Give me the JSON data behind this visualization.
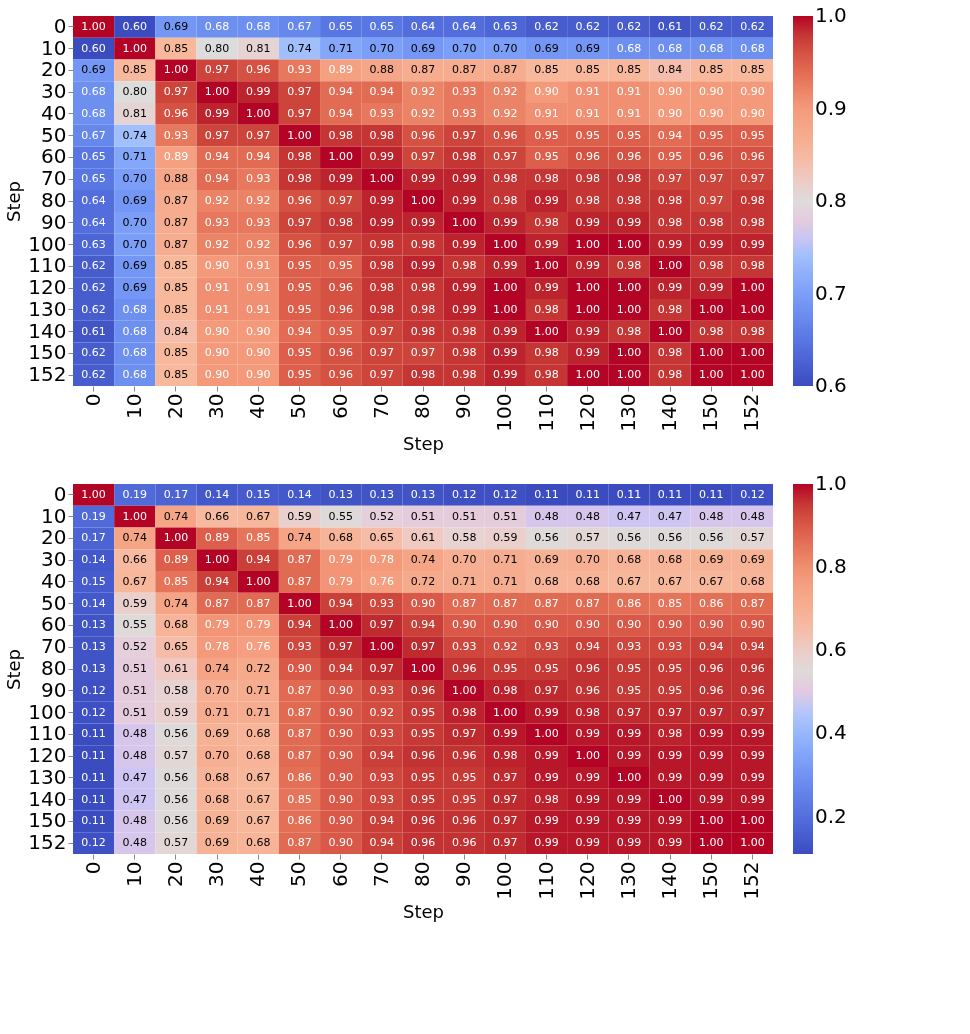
{
  "chart_data": [
    {
      "type": "heatmap",
      "xlabel": "Step",
      "ylabel": "Step",
      "categories": [
        "0",
        "10",
        "20",
        "30",
        "40",
        "50",
        "60",
        "70",
        "80",
        "90",
        "100",
        "110",
        "120",
        "130",
        "140",
        "150",
        "152"
      ],
      "y_categories": [
        "0",
        "10",
        "20",
        "30",
        "40",
        "50",
        "60",
        "70",
        "80",
        "90",
        "100",
        "110",
        "120",
        "130",
        "140",
        "150",
        "152"
      ],
      "data_labels": true,
      "clim": [
        0.6,
        1.0
      ],
      "cticks": [
        0.6,
        0.7,
        0.8,
        0.9,
        {
          "value": 1.0,
          "label": "1.0"
        }
      ],
      "cells": [
        [
          1.0,
          0.6,
          0.69,
          0.68,
          0.68,
          0.67,
          0.65,
          0.65,
          0.64,
          0.64,
          0.63,
          0.62,
          0.62,
          0.62,
          0.61,
          0.62,
          0.62
        ],
        [
          0.6,
          1.0,
          0.85,
          0.8,
          0.81,
          0.74,
          0.71,
          0.7,
          0.69,
          0.7,
          0.7,
          0.69,
          0.69,
          0.68,
          0.68,
          0.68,
          0.68
        ],
        [
          0.69,
          0.85,
          1.0,
          0.97,
          0.96,
          0.93,
          0.89,
          0.88,
          0.87,
          0.87,
          0.87,
          0.85,
          0.85,
          0.85,
          0.84,
          0.85,
          0.85
        ],
        [
          0.68,
          0.8,
          0.97,
          1.0,
          0.99,
          0.97,
          0.94,
          0.94,
          0.92,
          0.93,
          0.92,
          0.9,
          0.91,
          0.91,
          0.9,
          0.9,
          0.9
        ],
        [
          0.68,
          0.81,
          0.96,
          0.99,
          1.0,
          0.97,
          0.94,
          0.93,
          0.92,
          0.93,
          0.92,
          0.91,
          0.91,
          0.91,
          0.9,
          0.9,
          0.9
        ],
        [
          0.67,
          0.74,
          0.93,
          0.97,
          0.97,
          1.0,
          0.98,
          0.98,
          0.96,
          0.97,
          0.96,
          0.95,
          0.95,
          0.95,
          0.94,
          0.95,
          0.95
        ],
        [
          0.65,
          0.71,
          0.89,
          0.94,
          0.94,
          0.98,
          1.0,
          0.99,
          0.97,
          0.98,
          0.97,
          0.95,
          0.96,
          0.96,
          0.95,
          0.96,
          0.96
        ],
        [
          0.65,
          0.7,
          0.88,
          0.94,
          0.93,
          0.98,
          0.99,
          1.0,
          0.99,
          0.99,
          0.98,
          0.98,
          0.98,
          0.98,
          0.97,
          0.97,
          0.97
        ],
        [
          0.64,
          0.69,
          0.87,
          0.92,
          0.92,
          0.96,
          0.97,
          0.99,
          1.0,
          0.99,
          0.98,
          0.99,
          0.98,
          0.98,
          0.98,
          0.97,
          0.98
        ],
        [
          0.64,
          0.7,
          0.87,
          0.93,
          0.93,
          0.97,
          0.98,
          0.99,
          0.99,
          1.0,
          0.99,
          0.98,
          0.99,
          0.99,
          0.98,
          0.98,
          0.98
        ],
        [
          0.63,
          0.7,
          0.87,
          0.92,
          0.92,
          0.96,
          0.97,
          0.98,
          0.98,
          0.99,
          1.0,
          0.99,
          1.0,
          1.0,
          0.99,
          0.99,
          0.99
        ],
        [
          0.62,
          0.69,
          0.85,
          0.9,
          0.91,
          0.95,
          0.95,
          0.98,
          0.99,
          0.98,
          0.99,
          1.0,
          0.99,
          0.98,
          1.0,
          0.98,
          0.98
        ],
        [
          0.62,
          0.69,
          0.85,
          0.91,
          0.91,
          0.95,
          0.96,
          0.98,
          0.98,
          0.99,
          1.0,
          0.99,
          1.0,
          1.0,
          0.99,
          0.99,
          1.0
        ],
        [
          0.62,
          0.68,
          0.85,
          0.91,
          0.91,
          0.95,
          0.96,
          0.98,
          0.98,
          0.99,
          1.0,
          0.98,
          1.0,
          1.0,
          0.98,
          1.0,
          1.0
        ],
        [
          0.61,
          0.68,
          0.84,
          0.9,
          0.9,
          0.94,
          0.95,
          0.97,
          0.98,
          0.98,
          0.99,
          1.0,
          0.99,
          0.98,
          1.0,
          0.98,
          0.98
        ],
        [
          0.62,
          0.68,
          0.85,
          0.9,
          0.9,
          0.95,
          0.96,
          0.97,
          0.97,
          0.98,
          0.99,
          0.98,
          0.99,
          1.0,
          0.98,
          1.0,
          1.0
        ],
        [
          0.62,
          0.68,
          0.85,
          0.9,
          0.9,
          0.95,
          0.96,
          0.97,
          0.98,
          0.98,
          0.99,
          0.98,
          1.0,
          1.0,
          0.98,
          1.0,
          1.0
        ]
      ],
      "cell_labels": [
        [
          "1.00",
          "0.60",
          "0.69",
          "0.68",
          "0.68",
          "0.67",
          "0.65",
          "0.65",
          "0.64",
          "0.64",
          "0.63",
          "0.62",
          "0.62",
          "0.62",
          "0.61",
          "0.62",
          "0.62"
        ],
        [
          "0.60",
          "1.00",
          "0.85",
          "0.80",
          "0.81",
          "0.74",
          "0.71",
          "0.70",
          "0.69",
          "0.70",
          "0.70",
          "0.69",
          "0.69",
          "0.68",
          "0.68",
          "0.68",
          "0.68"
        ],
        [
          "0.69",
          "0.85",
          "1.00",
          "0.97",
          "0.96",
          "0.93",
          "0.89",
          "0.88",
          "0.87",
          "0.87",
          "0.87",
          "0.85",
          "0.85",
          "0.85",
          "0.84",
          "0.85",
          "0.85"
        ],
        [
          "0.68",
          "0.80",
          "0.97",
          "1.00",
          "0.99",
          "0.97",
          "0.94",
          "0.94",
          "0.92",
          "0.93",
          "0.92",
          "0.90",
          "0.91",
          "0.91",
          "0.90",
          "0.90",
          "0.90"
        ],
        [
          "0.68",
          "0.81",
          "0.96",
          "0.99",
          "1.00",
          "0.97",
          "0.94",
          "0.93",
          "0.92",
          "0.93",
          "0.92",
          "0.91",
          "0.91",
          "0.91",
          "0.90",
          "0.90",
          "0.90"
        ],
        [
          "0.67",
          "0.74",
          "0.93",
          "0.97",
          "0.97",
          "1.00",
          "0.98",
          "0.98",
          "0.96",
          "0.97",
          "0.96",
          "0.95",
          "0.95",
          "0.95",
          "0.94",
          "0.95",
          "0.95"
        ],
        [
          "0.65",
          "0.71",
          "0.89",
          "0.94",
          "0.94",
          "0.98",
          "1.00",
          "0.99",
          "0.97",
          "0.98",
          "0.97",
          "0.95",
          "0.96",
          "0.96",
          "0.95",
          "0.96",
          "0.96"
        ],
        [
          "0.65",
          "0.70",
          "0.88",
          "0.94",
          "0.93",
          "0.98",
          "0.99",
          "1.00",
          "0.99",
          "0.99",
          "0.98",
          "0.98",
          "0.98",
          "0.98",
          "0.97",
          "0.97",
          "0.97"
        ],
        [
          "0.64",
          "0.69",
          "0.87",
          "0.92",
          "0.92",
          "0.96",
          "0.97",
          "0.99",
          "1.00",
          "0.99",
          "0.98",
          "0.99",
          "0.98",
          "0.98",
          "0.98",
          "0.97",
          "0.98"
        ],
        [
          "0.64",
          "0.70",
          "0.87",
          "0.93",
          "0.93",
          "0.97",
          "0.98",
          "0.99",
          "0.99",
          "1.00",
          "0.99",
          "0.98",
          "0.99",
          "0.99",
          "0.98",
          "0.98",
          "0.98"
        ],
        [
          "0.63",
          "0.70",
          "0.87",
          "0.92",
          "0.92",
          "0.96",
          "0.97",
          "0.98",
          "0.98",
          "0.99",
          "1.00",
          "0.99",
          "1.00",
          "1.00",
          "0.99",
          "0.99",
          "0.99"
        ],
        [
          "0.62",
          "0.69",
          "0.85",
          "0.90",
          "0.91",
          "0.95",
          "0.95",
          "0.98",
          "0.99",
          "0.98",
          "0.99",
          "1.00",
          "0.99",
          "0.98",
          "1.00",
          "0.98",
          "0.98"
        ],
        [
          "0.62",
          "0.69",
          "0.85",
          "0.91",
          "0.91",
          "0.95",
          "0.96",
          "0.98",
          "0.98",
          "0.99",
          "1.00",
          "0.99",
          "1.00",
          "1.00",
          "0.99",
          "0.99",
          "1.00"
        ],
        [
          "0.62",
          "0.68",
          "0.85",
          "0.91",
          "0.91",
          "0.95",
          "0.96",
          "0.98",
          "0.98",
          "0.99",
          "1.00",
          "0.98",
          "1.00",
          "1.00",
          "0.98",
          "1.00",
          "1.00"
        ],
        [
          "0.61",
          "0.68",
          "0.84",
          "0.90",
          "0.90",
          "0.94",
          "0.95",
          "0.97",
          "0.98",
          "0.98",
          "0.99",
          "1.00",
          "0.99",
          "0.98",
          "1.00",
          "0.98",
          "0.98"
        ],
        [
          "0.62",
          "0.68",
          "0.85",
          "0.90",
          "0.90",
          "0.95",
          "0.96",
          "0.97",
          "0.97",
          "0.98",
          "0.99",
          "0.98",
          "0.99",
          "1.00",
          "0.98",
          "1.00",
          "1.00"
        ],
        [
          "0.62",
          "0.68",
          "0.85",
          "0.90",
          "0.90",
          "0.95",
          "0.96",
          "0.97",
          "0.98",
          "0.98",
          "0.99",
          "0.98",
          "1.00",
          "1.00",
          "0.98",
          "1.00",
          "1.00"
        ]
      ]
    },
    {
      "type": "heatmap",
      "xlabel": "Step",
      "ylabel": "Step",
      "categories": [
        "0",
        "10",
        "20",
        "30",
        "40",
        "50",
        "60",
        "70",
        "80",
        "90",
        "100",
        "110",
        "120",
        "130",
        "140",
        "150",
        "152"
      ],
      "y_categories": [
        "0",
        "10",
        "20",
        "30",
        "40",
        "50",
        "60",
        "70",
        "80",
        "90",
        "100",
        "110",
        "120",
        "130",
        "140",
        "150",
        "152"
      ],
      "data_labels": true,
      "clim": [
        0.11,
        1.0
      ],
      "cticks": [
        0.2,
        0.4,
        0.6,
        0.8,
        {
          "value": 1.0,
          "label": "1.0"
        }
      ],
      "cells": [
        [
          1.0,
          0.19,
          0.17,
          0.14,
          0.15,
          0.14,
          0.13,
          0.13,
          0.13,
          0.12,
          0.12,
          0.11,
          0.11,
          0.11,
          0.11,
          0.11,
          0.12
        ],
        [
          0.19,
          1.0,
          0.74,
          0.66,
          0.67,
          0.59,
          0.55,
          0.52,
          0.51,
          0.51,
          0.51,
          0.48,
          0.48,
          0.47,
          0.47,
          0.48,
          0.48
        ],
        [
          0.17,
          0.74,
          1.0,
          0.89,
          0.85,
          0.74,
          0.68,
          0.65,
          0.61,
          0.58,
          0.59,
          0.56,
          0.57,
          0.56,
          0.56,
          0.56,
          0.57
        ],
        [
          0.14,
          0.66,
          0.89,
          1.0,
          0.94,
          0.87,
          0.79,
          0.78,
          0.74,
          0.7,
          0.71,
          0.69,
          0.7,
          0.68,
          0.68,
          0.69,
          0.69
        ],
        [
          0.15,
          0.67,
          0.85,
          0.94,
          1.0,
          0.87,
          0.79,
          0.76,
          0.72,
          0.71,
          0.71,
          0.68,
          0.68,
          0.67,
          0.67,
          0.67,
          0.68
        ],
        [
          0.14,
          0.59,
          0.74,
          0.87,
          0.87,
          1.0,
          0.94,
          0.93,
          0.9,
          0.87,
          0.87,
          0.87,
          0.87,
          0.86,
          0.85,
          0.86,
          0.87
        ],
        [
          0.13,
          0.55,
          0.68,
          0.79,
          0.79,
          0.94,
          1.0,
          0.97,
          0.94,
          0.9,
          0.9,
          0.9,
          0.9,
          0.9,
          0.9,
          0.9,
          0.9
        ],
        [
          0.13,
          0.52,
          0.65,
          0.78,
          0.76,
          0.93,
          0.97,
          1.0,
          0.97,
          0.93,
          0.92,
          0.93,
          0.94,
          0.93,
          0.93,
          0.94,
          0.94
        ],
        [
          0.13,
          0.51,
          0.61,
          0.74,
          0.72,
          0.9,
          0.94,
          0.97,
          1.0,
          0.96,
          0.95,
          0.95,
          0.96,
          0.95,
          0.95,
          0.96,
          0.96
        ],
        [
          0.12,
          0.51,
          0.58,
          0.7,
          0.71,
          0.87,
          0.9,
          0.93,
          0.96,
          1.0,
          0.98,
          0.97,
          0.96,
          0.95,
          0.95,
          0.96,
          0.96
        ],
        [
          0.12,
          0.51,
          0.59,
          0.71,
          0.71,
          0.87,
          0.9,
          0.92,
          0.95,
          0.98,
          1.0,
          0.99,
          0.98,
          0.97,
          0.97,
          0.97,
          0.97
        ],
        [
          0.11,
          0.48,
          0.56,
          0.69,
          0.68,
          0.87,
          0.9,
          0.93,
          0.95,
          0.97,
          0.99,
          1.0,
          0.99,
          0.99,
          0.98,
          0.99,
          0.99
        ],
        [
          0.11,
          0.48,
          0.57,
          0.7,
          0.68,
          0.87,
          0.9,
          0.94,
          0.96,
          0.96,
          0.98,
          0.99,
          1.0,
          0.99,
          0.99,
          0.99,
          0.99
        ],
        [
          0.11,
          0.47,
          0.56,
          0.68,
          0.67,
          0.86,
          0.9,
          0.93,
          0.95,
          0.95,
          0.97,
          0.99,
          0.99,
          1.0,
          0.99,
          0.99,
          0.99
        ],
        [
          0.11,
          0.47,
          0.56,
          0.68,
          0.67,
          0.85,
          0.9,
          0.93,
          0.95,
          0.95,
          0.97,
          0.98,
          0.99,
          0.99,
          1.0,
          0.99,
          0.99
        ],
        [
          0.11,
          0.48,
          0.56,
          0.69,
          0.67,
          0.86,
          0.9,
          0.94,
          0.96,
          0.96,
          0.97,
          0.99,
          0.99,
          0.99,
          0.99,
          1.0,
          1.0
        ],
        [
          0.12,
          0.48,
          0.57,
          0.69,
          0.68,
          0.87,
          0.9,
          0.94,
          0.96,
          0.96,
          0.97,
          0.99,
          0.99,
          0.99,
          0.99,
          1.0,
          1.0
        ]
      ],
      "cell_labels": [
        [
          "1.00",
          "0.19",
          "0.17",
          "0.14",
          "0.15",
          "0.14",
          "0.13",
          "0.13",
          "0.13",
          "0.12",
          "0.12",
          "0.11",
          "0.11",
          "0.11",
          "0.11",
          "0.11",
          "0.12"
        ],
        [
          "0.19",
          "1.00",
          "0.74",
          "0.66",
          "0.67",
          "0.59",
          "0.55",
          "0.52",
          "0.51",
          "0.51",
          "0.51",
          "0.48",
          "0.48",
          "0.47",
          "0.47",
          "0.48",
          "0.48"
        ],
        [
          "0.17",
          "0.74",
          "1.00",
          "0.89",
          "0.85",
          "0.74",
          "0.68",
          "0.65",
          "0.61",
          "0.58",
          "0.59",
          "0.56",
          "0.57",
          "0.56",
          "0.56",
          "0.56",
          "0.57"
        ],
        [
          "0.14",
          "0.66",
          "0.89",
          "1.00",
          "0.94",
          "0.87",
          "0.79",
          "0.78",
          "0.74",
          "0.70",
          "0.71",
          "0.69",
          "0.70",
          "0.68",
          "0.68",
          "0.69",
          "0.69"
        ],
        [
          "0.15",
          "0.67",
          "0.85",
          "0.94",
          "1.00",
          "0.87",
          "0.79",
          "0.76",
          "0.72",
          "0.71",
          "0.71",
          "0.68",
          "0.68",
          "0.67",
          "0.67",
          "0.67",
          "0.68"
        ],
        [
          "0.14",
          "0.59",
          "0.74",
          "0.87",
          "0.87",
          "1.00",
          "0.94",
          "0.93",
          "0.90",
          "0.87",
          "0.87",
          "0.87",
          "0.87",
          "0.86",
          "0.85",
          "0.86",
          "0.87"
        ],
        [
          "0.13",
          "0.55",
          "0.68",
          "0.79",
          "0.79",
          "0.94",
          "1.00",
          "0.97",
          "0.94",
          "0.90",
          "0.90",
          "0.90",
          "0.90",
          "0.90",
          "0.90",
          "0.90",
          "0.90"
        ],
        [
          "0.13",
          "0.52",
          "0.65",
          "0.78",
          "0.76",
          "0.93",
          "0.97",
          "1.00",
          "0.97",
          "0.93",
          "0.92",
          "0.93",
          "0.94",
          "0.93",
          "0.93",
          "0.94",
          "0.94"
        ],
        [
          "0.13",
          "0.51",
          "0.61",
          "0.74",
          "0.72",
          "0.90",
          "0.94",
          "0.97",
          "1.00",
          "0.96",
          "0.95",
          "0.95",
          "0.96",
          "0.95",
          "0.95",
          "0.96",
          "0.96"
        ],
        [
          "0.12",
          "0.51",
          "0.58",
          "0.70",
          "0.71",
          "0.87",
          "0.90",
          "0.93",
          "0.96",
          "1.00",
          "0.98",
          "0.97",
          "0.96",
          "0.95",
          "0.95",
          "0.96",
          "0.96"
        ],
        [
          "0.12",
          "0.51",
          "0.59",
          "0.71",
          "0.71",
          "0.87",
          "0.90",
          "0.92",
          "0.95",
          "0.98",
          "1.00",
          "0.99",
          "0.98",
          "0.97",
          "0.97",
          "0.97",
          "0.97"
        ],
        [
          "0.11",
          "0.48",
          "0.56",
          "0.69",
          "0.68",
          "0.87",
          "0.90",
          "0.93",
          "0.95",
          "0.97",
          "0.99",
          "1.00",
          "0.99",
          "0.99",
          "0.98",
          "0.99",
          "0.99"
        ],
        [
          "0.11",
          "0.48",
          "0.57",
          "0.70",
          "0.68",
          "0.87",
          "0.90",
          "0.94",
          "0.96",
          "0.96",
          "0.98",
          "0.99",
          "1.00",
          "0.99",
          "0.99",
          "0.99",
          "0.99"
        ],
        [
          "0.11",
          "0.47",
          "0.56",
          "0.68",
          "0.67",
          "0.86",
          "0.90",
          "0.93",
          "0.95",
          "0.95",
          "0.97",
          "0.99",
          "0.99",
          "1.00",
          "0.99",
          "0.99",
          "0.99"
        ],
        [
          "0.11",
          "0.47",
          "0.56",
          "0.68",
          "0.67",
          "0.85",
          "0.90",
          "0.93",
          "0.95",
          "0.95",
          "0.97",
          "0.98",
          "0.99",
          "0.99",
          "1.00",
          "0.99",
          "0.99"
        ],
        [
          "0.11",
          "0.48",
          "0.56",
          "0.69",
          "0.67",
          "0.86",
          "0.90",
          "0.94",
          "0.96",
          "0.96",
          "0.97",
          "0.99",
          "0.99",
          "0.99",
          "0.99",
          "1.00",
          "1.00"
        ],
        [
          "0.12",
          "0.48",
          "0.57",
          "0.69",
          "0.68",
          "0.87",
          "0.90",
          "0.94",
          "0.96",
          "0.96",
          "0.97",
          "0.99",
          "0.99",
          "0.99",
          "0.99",
          "1.00",
          "1.00"
        ]
      ]
    }
  ]
}
